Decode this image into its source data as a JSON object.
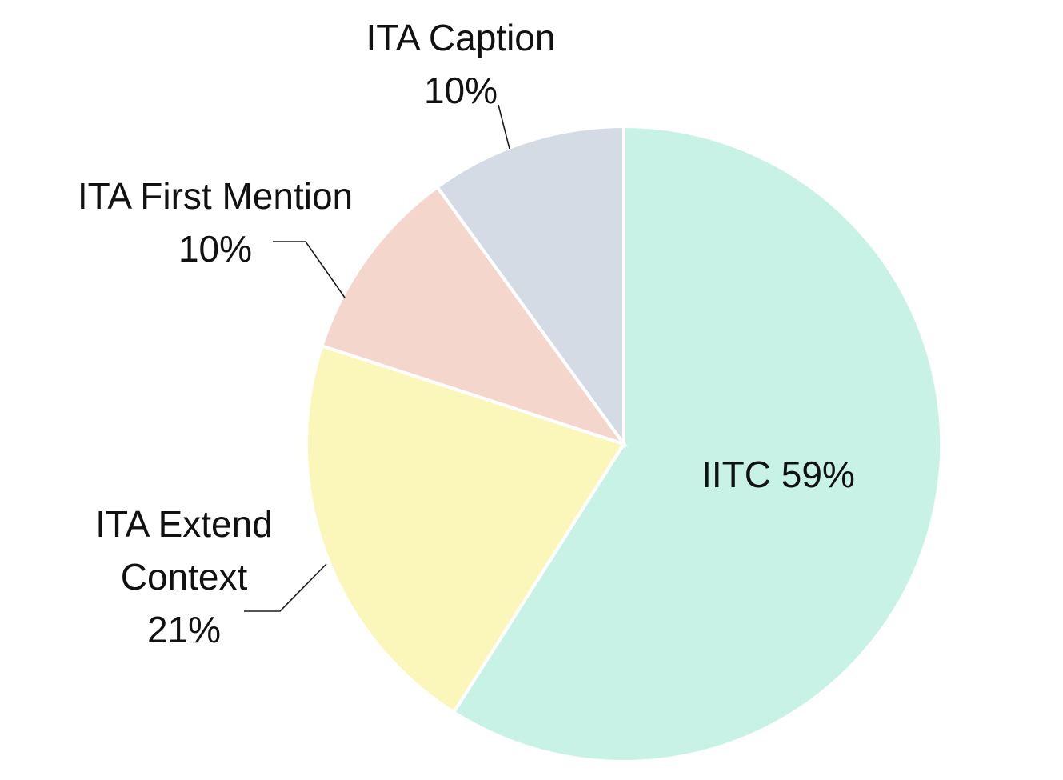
{
  "chart_data": {
    "type": "pie",
    "title": "",
    "start": "12 o'clock",
    "direction": "clockwise",
    "slices": [
      {
        "label": "IITC",
        "value": 59,
        "value_label": "59%",
        "color": "#c8f2e6",
        "label_text": [
          "IITC 59%"
        ]
      },
      {
        "label": "ITA Extend Context",
        "value": 21,
        "value_label": "21%",
        "color": "#fbf6b9",
        "label_text": [
          "ITA Extend",
          "Context",
          "21%"
        ]
      },
      {
        "label": "ITA First Mention",
        "value": 10,
        "value_label": "10%",
        "color": "#f5d6cc",
        "label_text": [
          "ITA First Mention",
          "10%"
        ]
      },
      {
        "label": "ITA Caption",
        "value": 10,
        "value_label": "10%",
        "color": "#d5dbe5",
        "label_text": [
          "ITA Caption",
          "10%"
        ]
      }
    ],
    "legend": "none"
  }
}
